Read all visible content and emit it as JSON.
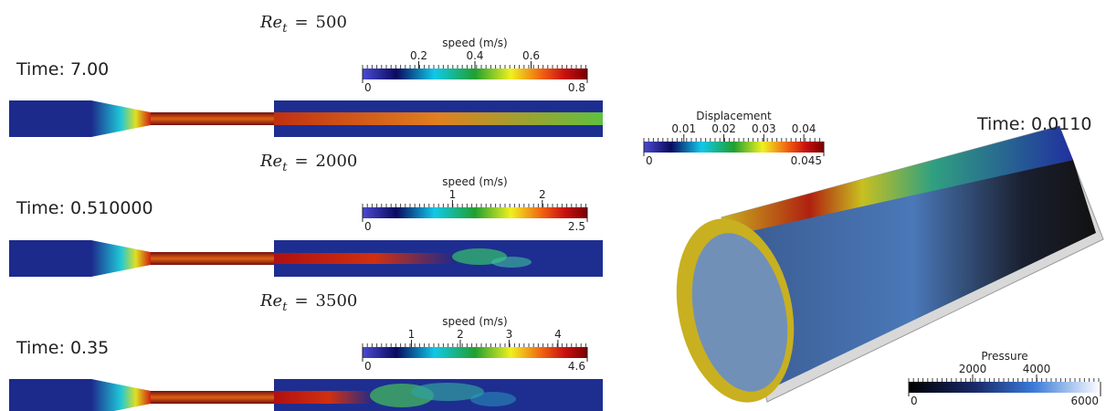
{
  "panels": [
    {
      "symbol": "Re",
      "subscript": "t",
      "relation": "=",
      "value": 500,
      "time": "Time: 7.00",
      "colorbar": {
        "label": "speed (m/s)",
        "range": [
          0,
          0.8
        ],
        "ticks": [
          0.2,
          0.4,
          0.6
        ]
      }
    },
    {
      "symbol": "Re",
      "subscript": "t",
      "relation": "=",
      "value": 2000,
      "time": "Time: 0.510000",
      "colorbar": {
        "label": "speed (m/s)",
        "range": [
          0,
          2.5
        ],
        "ticks": [
          1,
          2
        ]
      }
    },
    {
      "symbol": "Re",
      "subscript": "t",
      "relation": "=",
      "value": 3500,
      "time": "Time: 0.35",
      "colorbar": {
        "label": "speed (m/s)",
        "range": [
          0,
          4.6
        ],
        "ticks": [
          1,
          2,
          3,
          4
        ]
      }
    }
  ],
  "solid": {
    "time": "Time: 0.0110",
    "displacement": {
      "label": "Displacement",
      "range": [
        0,
        0.045
      ],
      "ticks": [
        0.01,
        0.02,
        0.03,
        0.04
      ]
    },
    "pressure": {
      "label": "Pressure",
      "range": [
        0,
        6000
      ],
      "ticks": [
        2000,
        4000
      ]
    }
  }
}
